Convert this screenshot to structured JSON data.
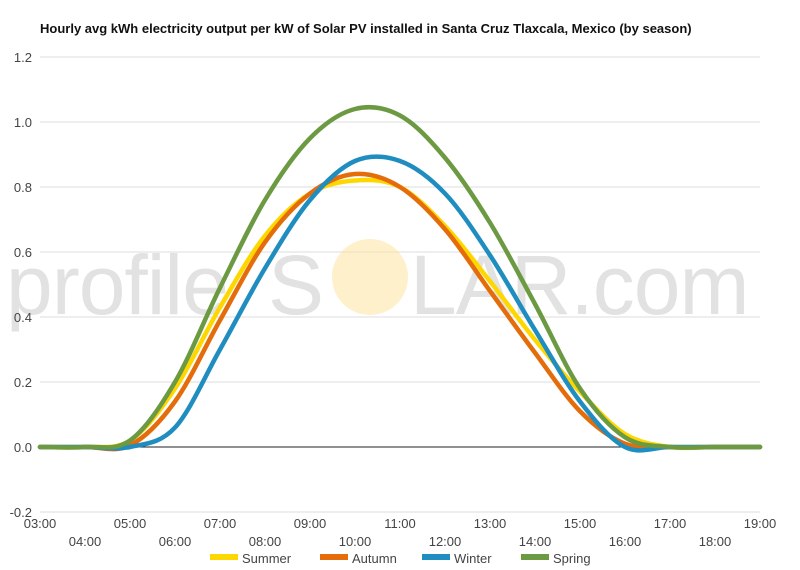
{
  "chart_data": {
    "type": "line",
    "title": "Hourly avg kWh electricity output per kW of Solar PV installed in Santa Cruz Tlaxcala, Mexico (by season)",
    "xlabel": "",
    "ylabel": "",
    "xlim": [
      3,
      19
    ],
    "ylim": [
      -0.2,
      1.2
    ],
    "yticks": [
      "-0.2",
      "0.0",
      "0.2",
      "0.4",
      "0.6",
      "0.8",
      "1.0",
      "1.2"
    ],
    "xticks": [
      "03:00",
      "04:00",
      "05:00",
      "06:00",
      "07:00",
      "08:00",
      "09:00",
      "10:00",
      "11:00",
      "12:00",
      "13:00",
      "14:00",
      "15:00",
      "16:00",
      "17:00",
      "18:00",
      "19:00"
    ],
    "grid": true,
    "legend_position": "bottom",
    "x": [
      3,
      4,
      5,
      6,
      7,
      8,
      9,
      10,
      11,
      12,
      13,
      14,
      15,
      16,
      17,
      18,
      19
    ],
    "series": [
      {
        "name": "Summer",
        "color": "#FFD700",
        "values": [
          0,
          0,
          0.02,
          0.18,
          0.43,
          0.65,
          0.78,
          0.82,
          0.8,
          0.68,
          0.51,
          0.33,
          0.17,
          0.04,
          0.0,
          0,
          0
        ]
      },
      {
        "name": "Autumn",
        "color": "#E46C0A",
        "values": [
          0,
          0,
          0.005,
          0.14,
          0.39,
          0.63,
          0.78,
          0.84,
          0.8,
          0.67,
          0.48,
          0.29,
          0.11,
          0.01,
          0,
          0,
          0
        ]
      },
      {
        "name": "Winter",
        "color": "#1F8DC0",
        "values": [
          0,
          0,
          0,
          0.06,
          0.3,
          0.55,
          0.76,
          0.88,
          0.88,
          0.78,
          0.59,
          0.36,
          0.14,
          0.0,
          0,
          0,
          0
        ]
      },
      {
        "name": "Spring",
        "color": "#6C9A42",
        "values": [
          0,
          0,
          0.02,
          0.2,
          0.49,
          0.76,
          0.95,
          1.04,
          1.02,
          0.89,
          0.69,
          0.44,
          0.18,
          0.03,
          0,
          0,
          0
        ]
      }
    ]
  },
  "watermark": {
    "left": "profile",
    "right": "S",
    "mid": "LAR.com"
  }
}
